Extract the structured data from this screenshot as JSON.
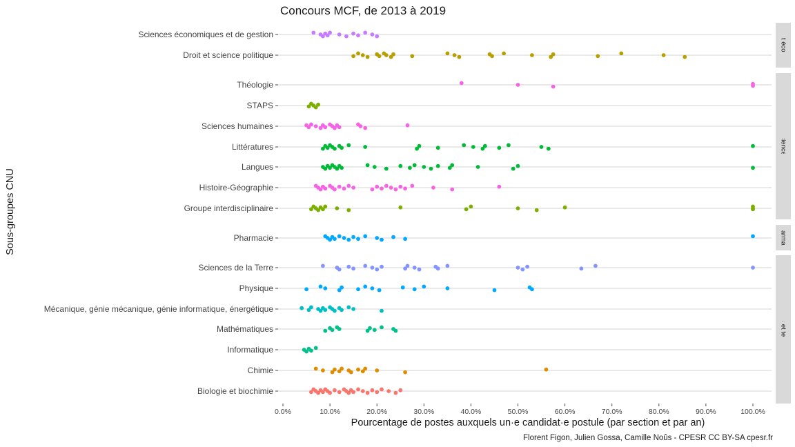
{
  "chart_data": {
    "type": "scatter",
    "title": "Concours MCF, de 2013 à 2019",
    "xlabel": "Pourcentage de postes auxquels un·e candidat·e postule (par section et par an)",
    "ylabel": "Sous-groupes CNU",
    "caption": "Florent Figon, Julien Gossa, Camille Noûs - CPESR CC BY-SA cpesr.fr",
    "xlim": [
      0,
      1.02
    ],
    "x_ticks": [
      0,
      0.1,
      0.2,
      0.3,
      0.4,
      0.5,
      0.6,
      0.7,
      0.8,
      0.9,
      1.0
    ],
    "x_tick_labels": [
      "0.0%",
      "10.0%",
      "20.0%",
      "30.0%",
      "40.0%",
      "50.0%",
      "60.0%",
      "70.0%",
      "80.0%",
      "90.0%",
      "100.0%"
    ],
    "grid": true,
    "legend": "none",
    "panels": [
      {
        "strip": "Droit éco ges",
        "categories": [
          {
            "name": "Sciences économiques et de gestion",
            "color": "#C77CFF",
            "x": [
              0.065,
              0.08,
              0.085,
              0.09,
              0.095,
              0.1,
              0.12,
              0.135,
              0.15,
              0.16,
              0.175,
              0.19,
              0.2
            ]
          },
          {
            "name": "Droit et science politique",
            "color": "#B79F00",
            "x": [
              0.15,
              0.16,
              0.17,
              0.18,
              0.2,
              0.205,
              0.215,
              0.22,
              0.23,
              0.235,
              0.275,
              0.35,
              0.365,
              0.375,
              0.44,
              0.445,
              0.47,
              0.53,
              0.57,
              0.575,
              0.67,
              0.72,
              0.81,
              0.855
            ]
          }
        ]
      },
      {
        "strip": "Lettres et sciences humaines",
        "categories": [
          {
            "name": "Théologie",
            "color": "#F564E3",
            "x": [
              0.38,
              0.5,
              0.575,
              1.0,
              1.0
            ]
          },
          {
            "name": "STAPS",
            "color": "#7CAE00",
            "x": [
              0.055,
              0.06,
              0.065,
              0.07,
              0.075
            ]
          },
          {
            "name": "Sciences humaines",
            "color": "#F564E3",
            "x": [
              0.05,
              0.055,
              0.06,
              0.07,
              0.08,
              0.085,
              0.09,
              0.1,
              0.105,
              0.11,
              0.115,
              0.12,
              0.16,
              0.165,
              0.175,
              0.265
            ]
          },
          {
            "name": "Littératures",
            "color": "#00BA38",
            "x": [
              0.085,
              0.09,
              0.095,
              0.1,
              0.105,
              0.11,
              0.12,
              0.125,
              0.14,
              0.175,
              0.285,
              0.29,
              0.33,
              0.385,
              0.405,
              0.425,
              0.43,
              0.46,
              0.48,
              0.55,
              0.565,
              1.0
            ]
          },
          {
            "name": "Langues",
            "color": "#00BA38",
            "x": [
              0.085,
              0.09,
              0.095,
              0.1,
              0.105,
              0.11,
              0.115,
              0.12,
              0.125,
              0.18,
              0.195,
              0.22,
              0.25,
              0.27,
              0.28,
              0.3,
              0.315,
              0.33,
              0.355,
              0.36,
              0.415,
              0.49,
              0.5,
              1.0
            ]
          },
          {
            "name": "Histoire-Géographie",
            "color": "#F564E3",
            "x": [
              0.07,
              0.075,
              0.08,
              0.085,
              0.09,
              0.1,
              0.105,
              0.11,
              0.12,
              0.13,
              0.14,
              0.15,
              0.19,
              0.2,
              0.21,
              0.22,
              0.23,
              0.24,
              0.25,
              0.26,
              0.275,
              0.32,
              0.36,
              0.46
            ]
          },
          {
            "name": "Groupe interdisciplinaire",
            "color": "#7CAE00",
            "x": [
              0.06,
              0.065,
              0.07,
              0.075,
              0.08,
              0.085,
              0.09,
              0.115,
              0.14,
              0.25,
              0.39,
              0.4,
              0.5,
              0.54,
              0.6,
              1.0,
              1.0,
              1.0
            ]
          }
        ]
      },
      {
        "strip": "harmac",
        "categories": [
          {
            "name": "Pharmacie",
            "color": "#00A9FF",
            "x": [
              0.09,
              0.095,
              0.1,
              0.105,
              0.11,
              0.12,
              0.13,
              0.14,
              0.15,
              0.16,
              0.175,
              0.2,
              0.21,
              0.235,
              0.26,
              1.0
            ]
          }
        ]
      },
      {
        "strip": "Sciences et techniques",
        "categories": [
          {
            "name": "Sciences de la Terre",
            "color": "#8494FF",
            "x": [
              0.085,
              0.115,
              0.12,
              0.14,
              0.15,
              0.175,
              0.19,
              0.2,
              0.21,
              0.26,
              0.265,
              0.28,
              0.29,
              0.325,
              0.33,
              0.35,
              0.5,
              0.51,
              0.52,
              0.635,
              0.665,
              1.0
            ]
          },
          {
            "name": "Physique",
            "color": "#00A9FF",
            "x": [
              0.05,
              0.08,
              0.09,
              0.12,
              0.125,
              0.16,
              0.175,
              0.19,
              0.205,
              0.255,
              0.28,
              0.3,
              0.35,
              0.45,
              0.525,
              0.53
            ]
          },
          {
            "name": "Mécanique, génie mécanique, génie informatique, énergétique",
            "color": "#00BFC4",
            "x": [
              0.04,
              0.055,
              0.06,
              0.075,
              0.08,
              0.085,
              0.09,
              0.1,
              0.105,
              0.11,
              0.12,
              0.125,
              0.14,
              0.15,
              0.21
            ]
          },
          {
            "name": "Mathématiques",
            "color": "#00C08B",
            "x": [
              0.09,
              0.1,
              0.105,
              0.115,
              0.12,
              0.18,
              0.185,
              0.195,
              0.21,
              0.235,
              0.24
            ]
          },
          {
            "name": "Informatique",
            "color": "#00C08B",
            "x": [
              0.045,
              0.05,
              0.055,
              0.06,
              0.07
            ]
          },
          {
            "name": "Chimie",
            "color": "#DE8C00",
            "x": [
              0.07,
              0.085,
              0.105,
              0.11,
              0.12,
              0.125,
              0.14,
              0.145,
              0.16,
              0.17,
              0.175,
              0.2,
              0.26,
              0.56
            ]
          },
          {
            "name": "Biologie et biochimie",
            "color": "#F8766D",
            "x": [
              0.06,
              0.065,
              0.07,
              0.075,
              0.08,
              0.085,
              0.09,
              0.095,
              0.1,
              0.11,
              0.12,
              0.13,
              0.135,
              0.14,
              0.145,
              0.15,
              0.16,
              0.17,
              0.18,
              0.19,
              0.2,
              0.21,
              0.225,
              0.24,
              0.25
            ]
          }
        ]
      }
    ]
  }
}
